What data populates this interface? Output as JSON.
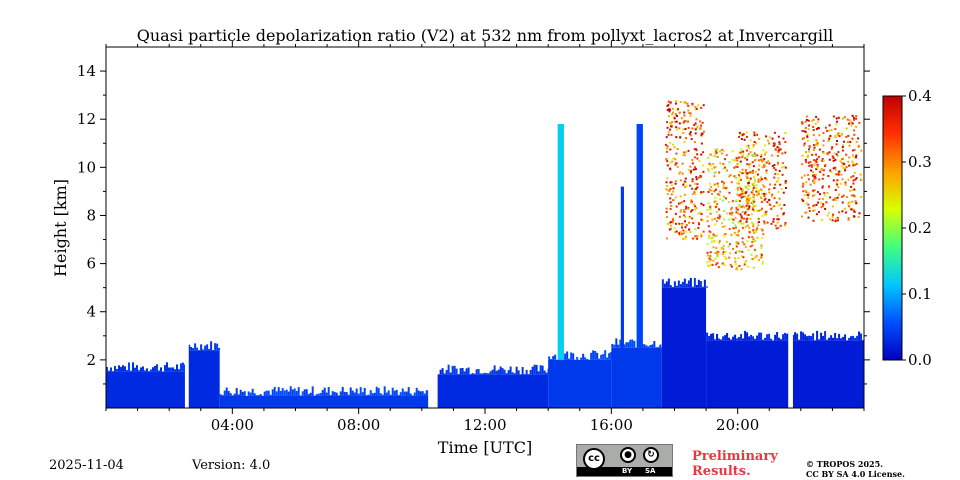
{
  "chart_data": {
    "type": "heatmap",
    "title": "Quasi particle depolarization ratio (V2) at 532 nm from pollyxt_lacros2 at Invercargill",
    "xlabel": "Time [UTC]",
    "ylabel": "Height [km]",
    "xlim": [
      0,
      24
    ],
    "ylim": [
      0,
      15
    ],
    "x_ticks": [
      {
        "value": 4,
        "label": "04:00"
      },
      {
        "value": 8,
        "label": "08:00"
      },
      {
        "value": 12,
        "label": "12:00"
      },
      {
        "value": 16,
        "label": "16:00"
      },
      {
        "value": 20,
        "label": "20:00"
      }
    ],
    "y_ticks": [
      {
        "value": 2,
        "label": "2"
      },
      {
        "value": 4,
        "label": "4"
      },
      {
        "value": 6,
        "label": "6"
      },
      {
        "value": 8,
        "label": "8"
      },
      {
        "value": 10,
        "label": "10"
      },
      {
        "value": 12,
        "label": "12"
      },
      {
        "value": 14,
        "label": "14"
      }
    ],
    "colorbar": {
      "range": [
        0.0,
        0.4
      ],
      "ticks": [
        {
          "value": 0.0,
          "label": "0.0"
        },
        {
          "value": 0.1,
          "label": "0.1"
        },
        {
          "value": 0.2,
          "label": "0.2"
        },
        {
          "value": 0.3,
          "label": "0.3"
        },
        {
          "value": 0.4,
          "label": "0.4"
        }
      ],
      "colormap": "jet",
      "stops": [
        "#0000c0",
        "#0050ff",
        "#00c8ff",
        "#40ff80",
        "#d8ff00",
        "#ffa000",
        "#ff3000",
        "#c00000"
      ]
    },
    "regions": [
      {
        "t0": 0.0,
        "t1": 2.5,
        "h0": 0.0,
        "h1": 1.5,
        "value": 0.03
      },
      {
        "t0": 2.6,
        "t1": 3.6,
        "h0": 0.0,
        "h1": 2.4,
        "value": 0.03
      },
      {
        "t0": 3.6,
        "t1": 10.3,
        "h0": 0.0,
        "h1": 0.5,
        "value": 0.04
      },
      {
        "t0": 10.5,
        "t1": 14.0,
        "h0": 0.0,
        "h1": 1.4,
        "value": 0.03
      },
      {
        "t0": 14.0,
        "t1": 16.0,
        "h0": 0.0,
        "h1": 2.0,
        "value": 0.04
      },
      {
        "t0": 16.0,
        "t1": 17.6,
        "h0": 0.0,
        "h1": 2.5,
        "value": 0.04
      },
      {
        "t0": 17.6,
        "t1": 19.0,
        "h0": 0.0,
        "h1": 5.0,
        "value": 0.02
      },
      {
        "t0": 19.0,
        "t1": 24.0,
        "h0": 0.0,
        "h1": 2.8,
        "value": 0.02
      },
      {
        "t0": 14.3,
        "t1": 14.5,
        "h0": 2.0,
        "h1": 11.8,
        "value": 0.12
      },
      {
        "t0": 16.3,
        "t1": 16.4,
        "h0": 2.5,
        "h1": 9.2,
        "value": 0.04
      },
      {
        "t0": 16.8,
        "t1": 17.0,
        "h0": 2.5,
        "h1": 11.8,
        "value": 0.05
      },
      {
        "t0": 17.7,
        "t1": 18.9,
        "h0": 7.0,
        "h1": 12.8,
        "value": 0.33
      },
      {
        "t0": 19.0,
        "t1": 20.8,
        "h0": 5.8,
        "h1": 10.8,
        "value": 0.28
      },
      {
        "t0": 20.0,
        "t1": 21.5,
        "h0": 7.5,
        "h1": 11.5,
        "value": 0.32
      },
      {
        "t0": 22.0,
        "t1": 23.9,
        "h0": 7.8,
        "h1": 12.2,
        "value": 0.33
      }
    ],
    "gaps": [
      {
        "t0": 2.5,
        "t1": 2.62
      },
      {
        "t0": 10.2,
        "t1": 10.35
      },
      {
        "t0": 21.6,
        "t1": 21.75
      }
    ]
  },
  "footer": {
    "date": "2025-11-04",
    "version": "Version: 4.0",
    "preliminary_line1": "Preliminary",
    "preliminary_line2": "Results.",
    "copyright_line1": "© TROPOS 2025.",
    "copyright_line2": "CC BY SA 4.0 License.",
    "cc_labels": {
      "cc": "cc",
      "by": "BY",
      "sa": "SA"
    }
  }
}
